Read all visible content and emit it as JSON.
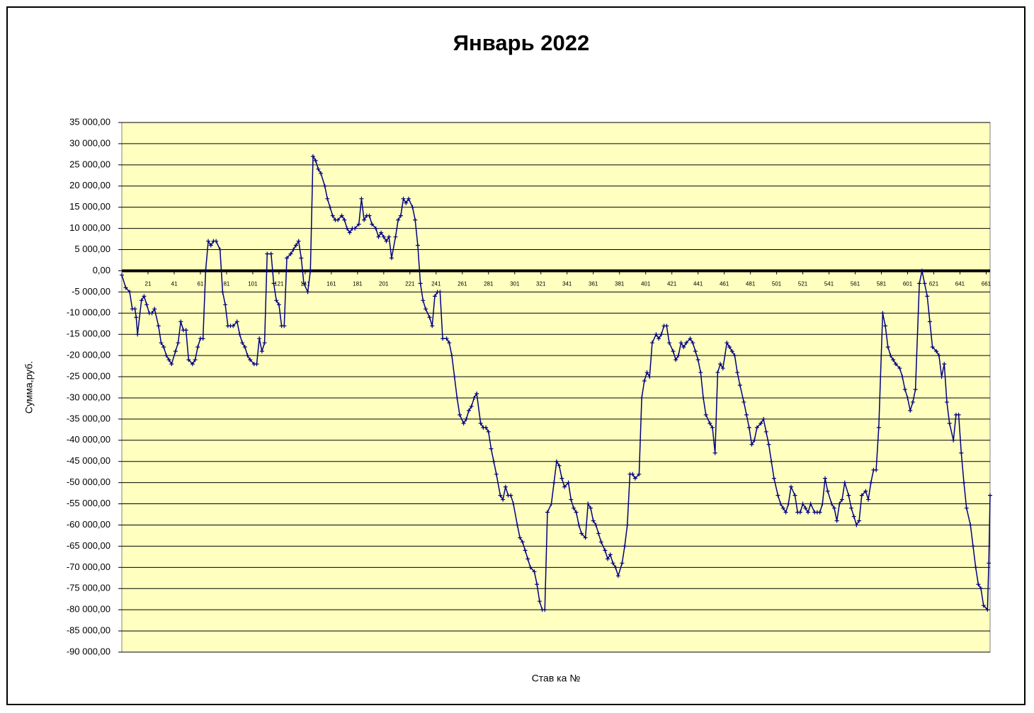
{
  "chart_data": {
    "type": "line",
    "title": "Январь 2022",
    "y_label": "Сумма,руб.",
    "x_label": "Став ка №",
    "xlim": [
      1,
      664
    ],
    "xticks": [
      21,
      41,
      61,
      81,
      101,
      121,
      141,
      161,
      181,
      201,
      221,
      241,
      261,
      281,
      301,
      321,
      341,
      361,
      381,
      401,
      421,
      441,
      461,
      481,
      501,
      521,
      541,
      561,
      581,
      601,
      621,
      641,
      661
    ],
    "ylim": [
      -90000,
      35000
    ],
    "yticks": [
      {
        "value": 35000,
        "label": "35 000,00"
      },
      {
        "value": 30000,
        "label": "30 000,00"
      },
      {
        "value": 25000,
        "label": "25 000,00"
      },
      {
        "value": 20000,
        "label": "20 000,00"
      },
      {
        "value": 15000,
        "label": "15 000,00"
      },
      {
        "value": 10000,
        "label": "10 000,00"
      },
      {
        "value": 5000,
        "label": "5 000,00"
      },
      {
        "value": 0,
        "label": "0,00"
      },
      {
        "value": -5000,
        "label": "-5 000,00"
      },
      {
        "value": -10000,
        "label": "-10 000,00"
      },
      {
        "value": -15000,
        "label": "-15 000,00"
      },
      {
        "value": -20000,
        "label": "-20 000,00"
      },
      {
        "value": -25000,
        "label": "-25 000,00"
      },
      {
        "value": -30000,
        "label": "-30 000,00"
      },
      {
        "value": -35000,
        "label": "-35 000,00"
      },
      {
        "value": -40000,
        "label": "-40 000,00"
      },
      {
        "value": -45000,
        "label": "-45 000,00"
      },
      {
        "value": -50000,
        "label": "-50 000,00"
      },
      {
        "value": -55000,
        "label": "-55 000,00"
      },
      {
        "value": -60000,
        "label": "-60 000,00"
      },
      {
        "value": -65000,
        "label": "-65 000,00"
      },
      {
        "value": -70000,
        "label": "-70 000,00"
      },
      {
        "value": -75000,
        "label": "-75 000,00"
      },
      {
        "value": -80000,
        "label": "-80 000,00"
      },
      {
        "value": -85000,
        "label": "-85 000,00"
      },
      {
        "value": -90000,
        "label": "-90 000,00"
      }
    ],
    "grid": true,
    "x": [
      1,
      4,
      7,
      9,
      11,
      12,
      13,
      16,
      18,
      20,
      22,
      24,
      26,
      29,
      31,
      33,
      35,
      37,
      39,
      42,
      44,
      46,
      48,
      50,
      52,
      55,
      57,
      59,
      61,
      63,
      65,
      67,
      69,
      71,
      73,
      76,
      78,
      80,
      82,
      84,
      86,
      89,
      91,
      93,
      95,
      97,
      99,
      102,
      104,
      106,
      108,
      110,
      112,
      115,
      117,
      119,
      121,
      123,
      125,
      127,
      130,
      132,
      134,
      136,
      138,
      140,
      143,
      145,
      147,
      149,
      151,
      153,
      156,
      158,
      160,
      162,
      164,
      166,
      169,
      171,
      173,
      175,
      177,
      179,
      182,
      184,
      186,
      188,
      190,
      192,
      195,
      197,
      199,
      201,
      203,
      205,
      207,
      210,
      212,
      214,
      216,
      218,
      220,
      223,
      225,
      227,
      229,
      231,
      233,
      236,
      238,
      240,
      242,
      244,
      246,
      249,
      251,
      253,
      255,
      257,
      259,
      262,
      264,
      266,
      268,
      270,
      272,
      275,
      277,
      279,
      281,
      283,
      285,
      287,
      290,
      292,
      294,
      296,
      298,
      300,
      303,
      305,
      307,
      309,
      311,
      313,
      316,
      318,
      320,
      322,
      324,
      326,
      329,
      331,
      333,
      335,
      337,
      339,
      342,
      344,
      346,
      348,
      350,
      352,
      355,
      357,
      359,
      361,
      363,
      365,
      367,
      370,
      372,
      374,
      376,
      378,
      380,
      383,
      385,
      387,
      389,
      391,
      393,
      396,
      398,
      400,
      402,
      404,
      406,
      409,
      411,
      413,
      415,
      417,
      419,
      422,
      424,
      426,
      428,
      430,
      432,
      435,
      437,
      439,
      441,
      443,
      445,
      447,
      450,
      452,
      454,
      456,
      458,
      460,
      463,
      465,
      467,
      469,
      471,
      473,
      476,
      478,
      480,
      482,
      484,
      486,
      489,
      491,
      493,
      495,
      497,
      499,
      502,
      504,
      506,
      508,
      510,
      512,
      515,
      517,
      519,
      521,
      523,
      525,
      527,
      530,
      532,
      534,
      536,
      538,
      540,
      543,
      545,
      547,
      549,
      551,
      553,
      556,
      558,
      560,
      562,
      564,
      566,
      569,
      571,
      573,
      575,
      577,
      579,
      582,
      584,
      586,
      588,
      590,
      592,
      595,
      597,
      599,
      601,
      603,
      605,
      607,
      610,
      612,
      614,
      616,
      618,
      620,
      623,
      625,
      627,
      629,
      631,
      633,
      636,
      638,
      640,
      642,
      644,
      646,
      649,
      651,
      653,
      655,
      657,
      659,
      662,
      663,
      664
    ],
    "series": [
      {
        "color": "#000080",
        "values": [
          -1000,
          -4000,
          -5000,
          -9000,
          -9000,
          -11000,
          -15000,
          -7000,
          -6000,
          -8000,
          -10000,
          -10000,
          -9000,
          -13000,
          -17000,
          -18000,
          -20000,
          -21000,
          -22000,
          -19000,
          -17000,
          -12000,
          -14000,
          -14000,
          -21000,
          -22000,
          -21000,
          -18000,
          -16000,
          -16000,
          0,
          7000,
          6000,
          7000,
          7000,
          5000,
          -5000,
          -8000,
          -13000,
          -13000,
          -13000,
          -12000,
          -15000,
          -17000,
          -18000,
          -20000,
          -21000,
          -22000,
          -22000,
          -16000,
          -19000,
          -17000,
          4000,
          4000,
          -3000,
          -7000,
          -8000,
          -13000,
          -13000,
          3000,
          4000,
          5000,
          6000,
          7000,
          3000,
          -3000,
          -5000,
          0,
          27000,
          26000,
          24000,
          23000,
          20000,
          17000,
          15000,
          13000,
          12000,
          12000,
          13000,
          12000,
          10000,
          9000,
          10000,
          10000,
          11000,
          17000,
          12000,
          13000,
          13000,
          11000,
          10000,
          8000,
          9000,
          8000,
          7000,
          8000,
          3000,
          8000,
          12000,
          13000,
          17000,
          16000,
          17000,
          15000,
          12000,
          6000,
          -3000,
          -7000,
          -9000,
          -11000,
          -13000,
          -6000,
          -5000,
          -5000,
          -16000,
          -16000,
          -17000,
          -20000,
          -25000,
          -30000,
          -34000,
          -36000,
          -35000,
          -33000,
          -32000,
          -30000,
          -29000,
          -36000,
          -37000,
          -37000,
          -38000,
          -42000,
          -45000,
          -48000,
          -53000,
          -54000,
          -51000,
          -53000,
          -53000,
          -55000,
          -60000,
          -63000,
          -64000,
          -66000,
          -68000,
          -70000,
          -71000,
          -74000,
          -78000,
          -80000,
          -80000,
          -57000,
          -55000,
          -50000,
          -45000,
          -46000,
          -49000,
          -51000,
          -50000,
          -54000,
          -56000,
          -57000,
          -60000,
          -62000,
          -63000,
          -55000,
          -56000,
          -59000,
          -60000,
          -62000,
          -64000,
          -66000,
          -68000,
          -67000,
          -69000,
          -70000,
          -72000,
          -69000,
          -65000,
          -60000,
          -48000,
          -48000,
          -49000,
          -48000,
          -30000,
          -26000,
          -24000,
          -25000,
          -17000,
          -15000,
          -16000,
          -15000,
          -13000,
          -13000,
          -17000,
          -19000,
          -21000,
          -20000,
          -17000,
          -18000,
          -17000,
          -16000,
          -17000,
          -19000,
          -21000,
          -24000,
          -30000,
          -34000,
          -36000,
          -37000,
          -43000,
          -24000,
          -22000,
          -23000,
          -17000,
          -18000,
          -19000,
          -20000,
          -24000,
          -27000,
          -31000,
          -34000,
          -37000,
          -41000,
          -40000,
          -37000,
          -36000,
          -35000,
          -38000,
          -41000,
          -45000,
          -49000,
          -53000,
          -55000,
          -56000,
          -57000,
          -55000,
          -51000,
          -53000,
          -57000,
          -57000,
          -55000,
          -56000,
          -57000,
          -55000,
          -57000,
          -57000,
          -57000,
          -55000,
          -49000,
          -52000,
          -55000,
          -56000,
          -59000,
          -55000,
          -54000,
          -50000,
          -53000,
          -56000,
          -58000,
          -60000,
          -59000,
          -53000,
          -52000,
          -54000,
          -50000,
          -47000,
          -47000,
          -37000,
          -10000,
          -13000,
          -18000,
          -20000,
          -21000,
          -22000,
          -23000,
          -25000,
          -28000,
          -30000,
          -33000,
          -31000,
          -28000,
          -3000,
          0,
          -3000,
          -6000,
          -12000,
          -18000,
          -19000,
          -20000,
          -25000,
          -22000,
          -31000,
          -36000,
          -40000,
          -34000,
          -34000,
          -43000,
          -50000,
          -56000,
          -60000,
          -65000,
          -70000,
          -74000,
          -75000,
          -79000,
          -80000,
          -69000,
          -53000
        ]
      }
    ]
  }
}
